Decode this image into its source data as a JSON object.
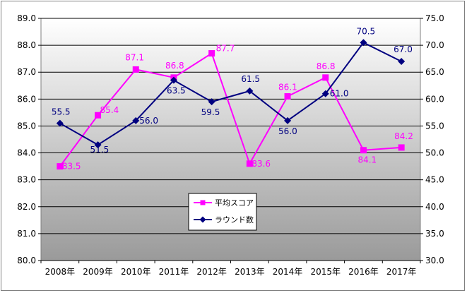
{
  "chart_data": {
    "type": "line",
    "categories": [
      "2008年",
      "2009年",
      "2010年",
      "2011年",
      "2012年",
      "2013年",
      "2014年",
      "2015年",
      "2016年",
      "2017年"
    ],
    "series": [
      {
        "name": "平均スコア",
        "axis": "left",
        "color": "#ff00ff",
        "marker": "square",
        "values": [
          83.5,
          85.4,
          87.1,
          86.8,
          87.7,
          83.6,
          86.1,
          86.8,
          84.1,
          84.2
        ],
        "labels": [
          "83.5",
          "85.4",
          "87.1",
          "86.8",
          "87.7",
          "83.6",
          "86.1",
          "86.8",
          "84.1",
          "84.2"
        ]
      },
      {
        "name": "ラウンド数",
        "axis": "right",
        "color": "#000080",
        "marker": "diamond",
        "values": [
          55.5,
          51.5,
          56.0,
          63.5,
          59.5,
          61.5,
          56.0,
          61.0,
          70.5,
          67.0
        ],
        "labels": [
          "55.5",
          "51.5",
          "56.0",
          "63.5",
          "59.5",
          "61.5",
          "56.0",
          "61.0",
          "70.5",
          "67.0"
        ]
      }
    ],
    "y_left": {
      "min": 80.0,
      "max": 89.0,
      "step": 1.0,
      "ticks": [
        "80.0",
        "81.0",
        "82.0",
        "83.0",
        "84.0",
        "85.0",
        "86.0",
        "87.0",
        "88.0",
        "89.0"
      ]
    },
    "y_right": {
      "min": 30.0,
      "max": 75.0,
      "step": 5.0,
      "ticks": [
        "30.0",
        "35.0",
        "40.0",
        "45.0",
        "50.0",
        "55.0",
        "60.0",
        "65.0",
        "70.0",
        "75.0"
      ]
    },
    "grid": true,
    "legend_position": "lower-center",
    "plot_background": "gradient-white-to-gray"
  }
}
